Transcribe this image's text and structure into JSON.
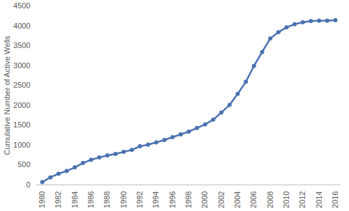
{
  "chart_data": {
    "type": "line",
    "y_label": "Cumulative Number of Active Wells",
    "x": [
      1980,
      1981,
      1982,
      1983,
      1984,
      1985,
      1986,
      1987,
      1988,
      1989,
      1990,
      1991,
      1992,
      1993,
      1994,
      1995,
      1996,
      1997,
      1998,
      1999,
      2000,
      2001,
      2002,
      2003,
      2004,
      2005,
      2006,
      2007,
      2008,
      2009,
      2010,
      2011,
      2012,
      2013,
      2014,
      2015,
      2016
    ],
    "values": [
      70,
      190,
      280,
      350,
      440,
      550,
      630,
      690,
      740,
      780,
      830,
      880,
      970,
      1010,
      1070,
      1130,
      1200,
      1270,
      1340,
      1430,
      1520,
      1640,
      1820,
      2010,
      2290,
      2590,
      2990,
      3340,
      3680,
      3840,
      3960,
      4040,
      4090,
      4120,
      4130,
      4130,
      4140
    ],
    "color": "#4a72b2",
    "marker": "circle",
    "xlim": [
      1980,
      2016
    ],
    "xticks": [
      1980,
      1982,
      1984,
      1986,
      1988,
      1990,
      1992,
      1994,
      1996,
      1998,
      2000,
      2002,
      2004,
      2006,
      2008,
      2010,
      2012,
      2014,
      2016
    ],
    "ylim": [
      0,
      4500
    ],
    "yticks": [
      0,
      500,
      1000,
      1500,
      2000,
      2500,
      3000,
      3500,
      4000,
      4500
    ],
    "grid": false
  }
}
